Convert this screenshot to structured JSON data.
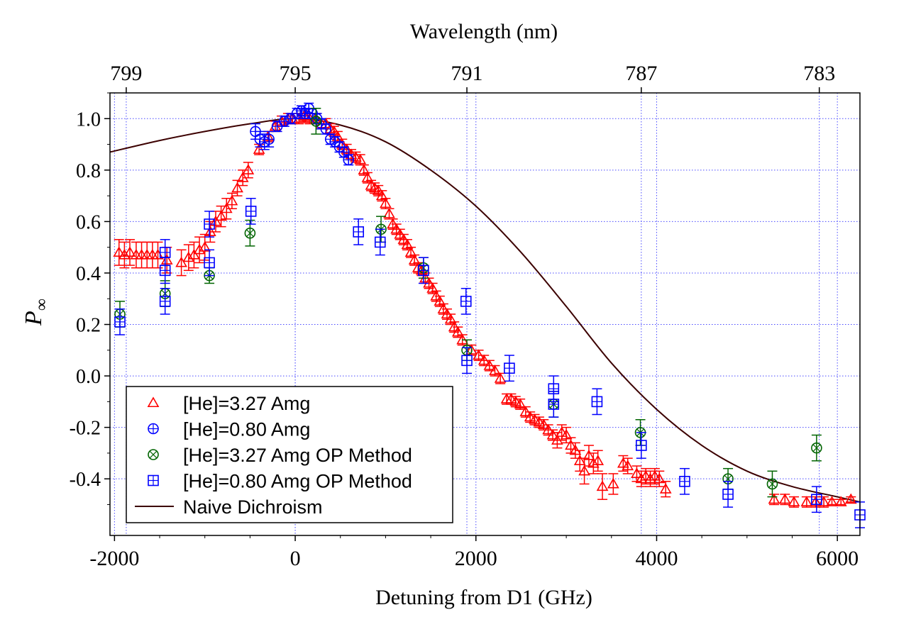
{
  "chart_data": {
    "type": "scatter",
    "xlabel": "Detuning from D1 (GHz)",
    "ylabel_main": "P",
    "ylabel_sub": "∞",
    "top_axis_label": "Wavelength (nm)",
    "xlim": [
      -2050,
      6250
    ],
    "ylim": [
      -0.62,
      1.1
    ],
    "x_ticks": [
      -2000,
      0,
      2000,
      4000,
      6000
    ],
    "x_tick_labels": [
      "-2000",
      "0",
      "2000",
      "4000",
      "6000"
    ],
    "y_ticks": [
      -0.4,
      -0.2,
      0.0,
      0.2,
      0.4,
      0.6,
      0.8,
      1.0
    ],
    "y_tick_labels": [
      "-0.4",
      "-0.2",
      "0.0",
      "0.2",
      "0.4",
      "0.6",
      "0.8",
      "1.0"
    ],
    "top_ticks": [
      {
        "label": "799",
        "x": -1870
      },
      {
        "label": "795",
        "x": 0
      },
      {
        "label": "791",
        "x": 1900
      },
      {
        "label": "787",
        "x": 3830
      },
      {
        "label": "783",
        "x": 5800
      }
    ],
    "grid": true,
    "legend_position": "bottom-left",
    "series": [
      {
        "name": "[He]=3.27 Amg",
        "marker": "triangle",
        "color": "#ff0000",
        "points": [
          {
            "x": -1950,
            "y": 0.48,
            "err": 0.05
          },
          {
            "x": -1890,
            "y": 0.47,
            "err": 0.05
          },
          {
            "x": -1830,
            "y": 0.48,
            "err": 0.05
          },
          {
            "x": -1760,
            "y": 0.47,
            "err": 0.05
          },
          {
            "x": -1700,
            "y": 0.47,
            "err": 0.05
          },
          {
            "x": -1640,
            "y": 0.47,
            "err": 0.05
          },
          {
            "x": -1580,
            "y": 0.47,
            "err": 0.05
          },
          {
            "x": -1520,
            "y": 0.47,
            "err": 0.05
          },
          {
            "x": -1420,
            "y": 0.45,
            "err": 0.05
          },
          {
            "x": -1260,
            "y": 0.44,
            "err": 0.05
          },
          {
            "x": -1180,
            "y": 0.46,
            "err": 0.05
          },
          {
            "x": -1120,
            "y": 0.47,
            "err": 0.05
          },
          {
            "x": -1060,
            "y": 0.49,
            "err": 0.05
          },
          {
            "x": -1000,
            "y": 0.5,
            "err": 0.05
          },
          {
            "x": -940,
            "y": 0.56,
            "err": 0.04
          },
          {
            "x": -880,
            "y": 0.6,
            "err": 0.04
          },
          {
            "x": -820,
            "y": 0.62,
            "err": 0.04
          },
          {
            "x": -760,
            "y": 0.65,
            "err": 0.04
          },
          {
            "x": -700,
            "y": 0.68,
            "err": 0.03
          },
          {
            "x": -640,
            "y": 0.73,
            "err": 0.03
          },
          {
            "x": -580,
            "y": 0.77,
            "err": 0.03
          },
          {
            "x": -520,
            "y": 0.8,
            "err": 0.03
          },
          {
            "x": -400,
            "y": 0.88,
            "err": 0.02
          },
          {
            "x": -300,
            "y": 0.93,
            "err": 0.02
          },
          {
            "x": -220,
            "y": 0.97,
            "err": 0.02
          },
          {
            "x": -150,
            "y": 0.99,
            "err": 0.02
          },
          {
            "x": -80,
            "y": 1.0,
            "err": 0.02
          },
          {
            "x": -30,
            "y": 1.0,
            "err": 0.02
          },
          {
            "x": 40,
            "y": 1.0,
            "err": 0.02
          },
          {
            "x": 100,
            "y": 1.01,
            "err": 0.02
          },
          {
            "x": 160,
            "y": 1.0,
            "err": 0.02
          },
          {
            "x": 230,
            "y": 1.0,
            "err": 0.02
          },
          {
            "x": 290,
            "y": 0.98,
            "err": 0.02
          },
          {
            "x": 340,
            "y": 0.98,
            "err": 0.02
          },
          {
            "x": 390,
            "y": 0.96,
            "err": 0.02
          },
          {
            "x": 430,
            "y": 0.95,
            "err": 0.02
          },
          {
            "x": 470,
            "y": 0.93,
            "err": 0.02
          },
          {
            "x": 520,
            "y": 0.9,
            "err": 0.02
          },
          {
            "x": 570,
            "y": 0.88,
            "err": 0.02
          },
          {
            "x": 620,
            "y": 0.86,
            "err": 0.02
          },
          {
            "x": 670,
            "y": 0.85,
            "err": 0.02
          },
          {
            "x": 720,
            "y": 0.84,
            "err": 0.02
          },
          {
            "x": 760,
            "y": 0.8,
            "err": 0.02
          },
          {
            "x": 800,
            "y": 0.77,
            "err": 0.02
          },
          {
            "x": 840,
            "y": 0.74,
            "err": 0.02
          },
          {
            "x": 880,
            "y": 0.73,
            "err": 0.02
          },
          {
            "x": 920,
            "y": 0.72,
            "err": 0.02
          },
          {
            "x": 960,
            "y": 0.7,
            "err": 0.02
          },
          {
            "x": 1000,
            "y": 0.67,
            "err": 0.02
          },
          {
            "x": 1040,
            "y": 0.63,
            "err": 0.02
          },
          {
            "x": 1080,
            "y": 0.59,
            "err": 0.02
          },
          {
            "x": 1120,
            "y": 0.57,
            "err": 0.02
          },
          {
            "x": 1160,
            "y": 0.55,
            "err": 0.02
          },
          {
            "x": 1200,
            "y": 0.53,
            "err": 0.02
          },
          {
            "x": 1240,
            "y": 0.51,
            "err": 0.02
          },
          {
            "x": 1280,
            "y": 0.48,
            "err": 0.02
          },
          {
            "x": 1320,
            "y": 0.45,
            "err": 0.02
          },
          {
            "x": 1360,
            "y": 0.42,
            "err": 0.02
          },
          {
            "x": 1400,
            "y": 0.41,
            "err": 0.02
          },
          {
            "x": 1440,
            "y": 0.38,
            "err": 0.02
          },
          {
            "x": 1480,
            "y": 0.36,
            "err": 0.02
          },
          {
            "x": 1520,
            "y": 0.34,
            "err": 0.02
          },
          {
            "x": 1560,
            "y": 0.31,
            "err": 0.02
          },
          {
            "x": 1600,
            "y": 0.29,
            "err": 0.02
          },
          {
            "x": 1640,
            "y": 0.26,
            "err": 0.02
          },
          {
            "x": 1680,
            "y": 0.24,
            "err": 0.02
          },
          {
            "x": 1720,
            "y": 0.22,
            "err": 0.02
          },
          {
            "x": 1760,
            "y": 0.19,
            "err": 0.02
          },
          {
            "x": 1800,
            "y": 0.17,
            "err": 0.02
          },
          {
            "x": 1850,
            "y": 0.14,
            "err": 0.02
          },
          {
            "x": 1950,
            "y": 0.1,
            "err": 0.02
          },
          {
            "x": 2030,
            "y": 0.08,
            "err": 0.02
          },
          {
            "x": 2090,
            "y": 0.06,
            "err": 0.02
          },
          {
            "x": 2150,
            "y": 0.04,
            "err": 0.02
          },
          {
            "x": 2210,
            "y": 0.02,
            "err": 0.02
          },
          {
            "x": 2270,
            "y": -0.01,
            "err": 0.02
          },
          {
            "x": 2340,
            "y": -0.09,
            "err": 0.02
          },
          {
            "x": 2390,
            "y": -0.09,
            "err": 0.02
          },
          {
            "x": 2440,
            "y": -0.1,
            "err": 0.02
          },
          {
            "x": 2490,
            "y": -0.11,
            "err": 0.02
          },
          {
            "x": 2550,
            "y": -0.14,
            "err": 0.02
          },
          {
            "x": 2600,
            "y": -0.16,
            "err": 0.02
          },
          {
            "x": 2650,
            "y": -0.17,
            "err": 0.02
          },
          {
            "x": 2700,
            "y": -0.18,
            "err": 0.02
          },
          {
            "x": 2750,
            "y": -0.19,
            "err": 0.02
          },
          {
            "x": 2800,
            "y": -0.21,
            "err": 0.02
          },
          {
            "x": 2850,
            "y": -0.23,
            "err": 0.02
          },
          {
            "x": 2900,
            "y": -0.25,
            "err": 0.03
          },
          {
            "x": 2950,
            "y": -0.22,
            "err": 0.03
          },
          {
            "x": 3000,
            "y": -0.23,
            "err": 0.03
          },
          {
            "x": 3050,
            "y": -0.27,
            "err": 0.03
          },
          {
            "x": 3100,
            "y": -0.29,
            "err": 0.03
          },
          {
            "x": 3150,
            "y": -0.33,
            "err": 0.04
          },
          {
            "x": 3200,
            "y": -0.37,
            "err": 0.05
          },
          {
            "x": 3250,
            "y": -0.31,
            "err": 0.04
          },
          {
            "x": 3300,
            "y": -0.34,
            "err": 0.04
          },
          {
            "x": 3350,
            "y": -0.33,
            "err": 0.04
          },
          {
            "x": 3400,
            "y": -0.43,
            "err": 0.05
          },
          {
            "x": 3520,
            "y": -0.42,
            "err": 0.04
          },
          {
            "x": 3630,
            "y": -0.34,
            "err": 0.03
          },
          {
            "x": 3680,
            "y": -0.35,
            "err": 0.03
          },
          {
            "x": 3780,
            "y": -0.38,
            "err": 0.03
          },
          {
            "x": 3830,
            "y": -0.4,
            "err": 0.03
          },
          {
            "x": 3880,
            "y": -0.39,
            "err": 0.03
          },
          {
            "x": 3930,
            "y": -0.4,
            "err": 0.03
          },
          {
            "x": 3980,
            "y": -0.39,
            "err": 0.03
          },
          {
            "x": 4030,
            "y": -0.4,
            "err": 0.03
          },
          {
            "x": 4100,
            "y": -0.44,
            "err": 0.03
          },
          {
            "x": 5300,
            "y": -0.48,
            "err": 0.02
          },
          {
            "x": 5420,
            "y": -0.48,
            "err": 0.02
          },
          {
            "x": 5520,
            "y": -0.49,
            "err": 0.02
          },
          {
            "x": 5660,
            "y": -0.49,
            "err": 0.02
          },
          {
            "x": 5760,
            "y": -0.49,
            "err": 0.02
          },
          {
            "x": 5850,
            "y": -0.49,
            "err": 0.02
          },
          {
            "x": 5940,
            "y": -0.49,
            "err": 0.01
          },
          {
            "x": 6040,
            "y": -0.49,
            "err": 0.01
          },
          {
            "x": 6150,
            "y": -0.48,
            "err": 0.01
          }
        ]
      },
      {
        "name": "[He]=0.80 Amg",
        "marker": "circle-plus",
        "color": "#0000ff",
        "points": [
          {
            "x": -440,
            "y": 0.95,
            "err": 0.03
          },
          {
            "x": -390,
            "y": 0.92,
            "err": 0.03
          },
          {
            "x": -340,
            "y": 0.91,
            "err": 0.03
          },
          {
            "x": -290,
            "y": 0.92,
            "err": 0.03
          },
          {
            "x": -200,
            "y": 0.97,
            "err": 0.02
          },
          {
            "x": -120,
            "y": 0.99,
            "err": 0.02
          },
          {
            "x": -50,
            "y": 1.0,
            "err": 0.02
          },
          {
            "x": 20,
            "y": 1.02,
            "err": 0.02
          },
          {
            "x": 70,
            "y": 1.03,
            "err": 0.02
          },
          {
            "x": 110,
            "y": 1.02,
            "err": 0.02
          },
          {
            "x": 150,
            "y": 1.04,
            "err": 0.02
          },
          {
            "x": 190,
            "y": 1.02,
            "err": 0.02
          },
          {
            "x": 240,
            "y": 1.0,
            "err": 0.02
          },
          {
            "x": 290,
            "y": 0.98,
            "err": 0.02
          },
          {
            "x": 340,
            "y": 0.96,
            "err": 0.02
          },
          {
            "x": 390,
            "y": 0.92,
            "err": 0.02
          },
          {
            "x": 440,
            "y": 0.91,
            "err": 0.02
          },
          {
            "x": 490,
            "y": 0.89,
            "err": 0.02
          },
          {
            "x": 540,
            "y": 0.87,
            "err": 0.02
          },
          {
            "x": 590,
            "y": 0.84,
            "err": 0.02
          }
        ]
      },
      {
        "name": "[He]=3.27 Amg OP Method",
        "marker": "circle-x",
        "color": "#006400",
        "points": [
          {
            "x": -1940,
            "y": 0.24,
            "err": 0.05
          },
          {
            "x": -1440,
            "y": 0.32,
            "err": 0.05
          },
          {
            "x": -950,
            "y": 0.39,
            "err": 0.03
          },
          {
            "x": -500,
            "y": 0.555,
            "err": 0.05
          },
          {
            "x": 230,
            "y": 0.99,
            "err": 0.05
          },
          {
            "x": 950,
            "y": 0.57,
            "err": 0.05
          },
          {
            "x": 1420,
            "y": 0.42,
            "err": 0.04
          },
          {
            "x": 1900,
            "y": 0.1,
            "err": 0.04
          },
          {
            "x": 2860,
            "y": -0.11,
            "err": 0.05
          },
          {
            "x": 3820,
            "y": -0.22,
            "err": 0.05
          },
          {
            "x": 4790,
            "y": -0.4,
            "err": 0.04
          },
          {
            "x": 5280,
            "y": -0.42,
            "err": 0.05
          },
          {
            "x": 5770,
            "y": -0.28,
            "err": 0.05
          }
        ]
      },
      {
        "name": "[He]=0.80 Amg OP Method",
        "marker": "square-plus",
        "color": "#0000ff",
        "points": [
          {
            "x": -1940,
            "y": 0.21,
            "err": 0.05
          },
          {
            "x": -1440,
            "y": 0.48,
            "err": 0.05
          },
          {
            "x": -1440,
            "y": 0.41,
            "err": 0.05
          },
          {
            "x": -1440,
            "y": 0.29,
            "err": 0.05
          },
          {
            "x": -950,
            "y": 0.59,
            "err": 0.05
          },
          {
            "x": -950,
            "y": 0.44,
            "err": 0.05
          },
          {
            "x": -490,
            "y": 0.64,
            "err": 0.05
          },
          {
            "x": 700,
            "y": 0.56,
            "err": 0.05
          },
          {
            "x": 940,
            "y": 0.52,
            "err": 0.05
          },
          {
            "x": 1420,
            "y": 0.41,
            "err": 0.05
          },
          {
            "x": 1890,
            "y": 0.29,
            "err": 0.05
          },
          {
            "x": 1900,
            "y": 0.06,
            "err": 0.05
          },
          {
            "x": 2370,
            "y": 0.03,
            "err": 0.05
          },
          {
            "x": 2860,
            "y": -0.05,
            "err": 0.05
          },
          {
            "x": 2860,
            "y": -0.11,
            "err": 0.05
          },
          {
            "x": 3340,
            "y": -0.1,
            "err": 0.05
          },
          {
            "x": 3830,
            "y": -0.27,
            "err": 0.05
          },
          {
            "x": 4310,
            "y": -0.41,
            "err": 0.05
          },
          {
            "x": 4790,
            "y": -0.46,
            "err": 0.05
          },
          {
            "x": 5770,
            "y": -0.48,
            "err": 0.05
          },
          {
            "x": 6250,
            "y": -0.54,
            "err": 0.05
          }
        ]
      },
      {
        "name": "Naive Dichroism",
        "marker": "line",
        "color": "#3c0000",
        "points": [
          {
            "x": -2050,
            "y": 0.87
          },
          {
            "x": -1500,
            "y": 0.915
          },
          {
            "x": -1000,
            "y": 0.95
          },
          {
            "x": -500,
            "y": 0.98
          },
          {
            "x": 0,
            "y": 1.0
          },
          {
            "x": 500,
            "y": 0.975
          },
          {
            "x": 1000,
            "y": 0.91
          },
          {
            "x": 1500,
            "y": 0.8
          },
          {
            "x": 2000,
            "y": 0.66
          },
          {
            "x": 2500,
            "y": 0.48
          },
          {
            "x": 3000,
            "y": 0.27
          },
          {
            "x": 3500,
            "y": 0.05
          },
          {
            "x": 4000,
            "y": -0.13
          },
          {
            "x": 4500,
            "y": -0.27
          },
          {
            "x": 5000,
            "y": -0.37
          },
          {
            "x": 5500,
            "y": -0.43
          },
          {
            "x": 6000,
            "y": -0.47
          },
          {
            "x": 6250,
            "y": -0.49
          }
        ]
      }
    ]
  }
}
